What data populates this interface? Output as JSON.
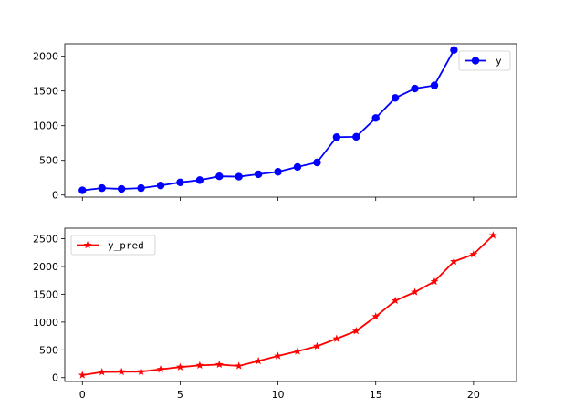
{
  "chart_data": [
    {
      "type": "line",
      "x": [
        0,
        1,
        2,
        3,
        4,
        5,
        6,
        7,
        8,
        9,
        10,
        11,
        12,
        13,
        14,
        15,
        16,
        17,
        18,
        19
      ],
      "series": [
        {
          "name": "y",
          "color": "#0000ff",
          "marker": "circle",
          "values": [
            68,
            100,
            88,
            100,
            138,
            183,
            215,
            270,
            265,
            300,
            335,
            405,
            470,
            835,
            840,
            1110,
            1400,
            1535,
            1580,
            2090
          ]
        }
      ],
      "xlim": [
        -0.9,
        22.2
      ],
      "ylim": [
        -30,
        2180
      ],
      "yticks": [
        0,
        500,
        1000,
        1500,
        2000
      ],
      "xticks": [
        0,
        5,
        10,
        15,
        20
      ],
      "show_xtick_labels": false,
      "grid": false,
      "legend": "upper right"
    },
    {
      "type": "line",
      "x": [
        0,
        1,
        2,
        3,
        4,
        5,
        6,
        7,
        8,
        9,
        10,
        11,
        12,
        13,
        14,
        15,
        16,
        17,
        18,
        19,
        20,
        21
      ],
      "series": [
        {
          "name": "y_pred",
          "color": "#ff0000",
          "marker": "star",
          "values": [
            45,
            100,
            105,
            108,
            150,
            190,
            220,
            235,
            210,
            300,
            390,
            475,
            565,
            700,
            840,
            1100,
            1385,
            1540,
            1730,
            2090,
            2220,
            2560
          ]
        }
      ],
      "xlim": [
        -0.9,
        22.2
      ],
      "ylim": [
        -70,
        2690
      ],
      "yticks": [
        0,
        500,
        1000,
        1500,
        2000,
        2500
      ],
      "xticks": [
        0,
        5,
        10,
        15,
        20
      ],
      "show_xtick_labels": true,
      "grid": false,
      "legend": "upper left"
    }
  ]
}
